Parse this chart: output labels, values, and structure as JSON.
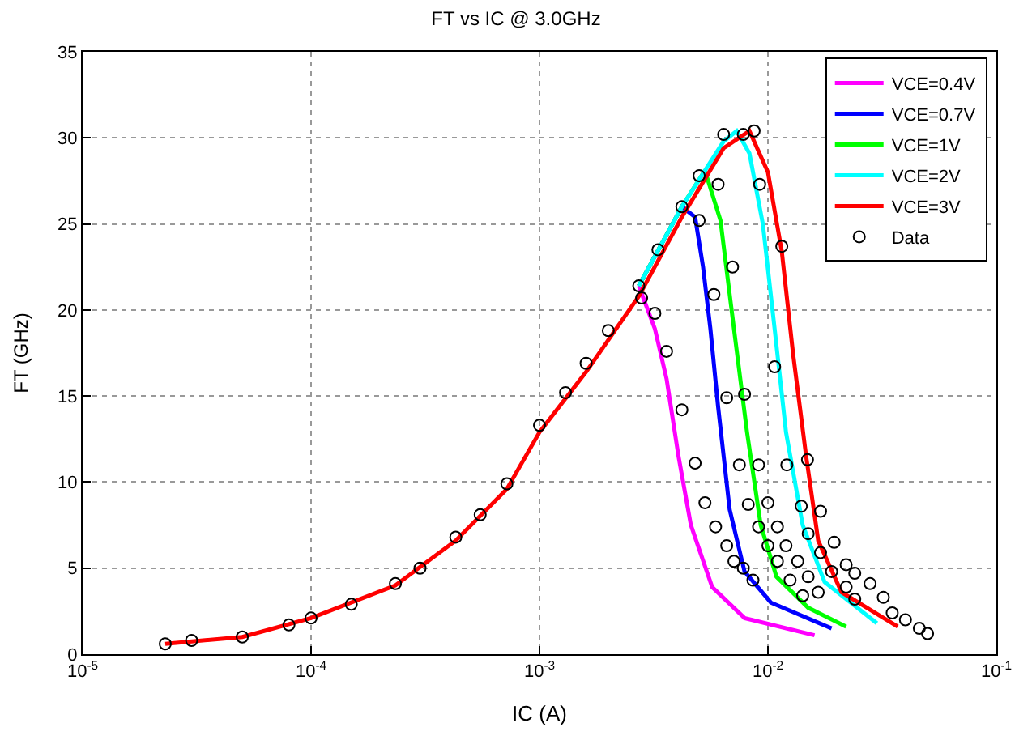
{
  "chart_data": {
    "type": "line",
    "title": "FT vs IC @ 3.0GHz",
    "xlabel": "IC (A)",
    "ylabel": "FT (GHz)",
    "log": "x",
    "grid": true,
    "legend": "top right",
    "xlim": [
      1e-05,
      0.1
    ],
    "xticks": [
      {
        "value": 1e-05,
        "label": "10$^{-5}$"
      },
      {
        "value": 0.0001,
        "label": "10$^{-4}$"
      },
      {
        "value": 0.001,
        "label": "10$^{-3}$"
      },
      {
        "value": 0.01,
        "label": "10$^{-2}$"
      },
      {
        "value": 0.1,
        "label": "10$^{-1}$"
      }
    ],
    "ylim": [
      0,
      35
    ],
    "yticks": [
      0,
      5,
      10,
      15,
      20,
      25,
      30,
      35
    ],
    "series": [
      {
        "name": "VCE=0.4V",
        "color": "#ff00ff",
        "marker": "none",
        "x": [
          0.00272,
          0.0032,
          0.0036,
          0.00406,
          0.0046,
          0.0057,
          0.0079,
          0.016
        ],
        "values": [
          21.4,
          18.9,
          16,
          11.5,
          7.5,
          3.9,
          2.1,
          1.1
        ]
      },
      {
        "name": "VCE=0.7V",
        "color": "#0000ff",
        "marker": "none",
        "x": [
          0.00272,
          0.0042,
          0.0048,
          0.0052,
          0.0056,
          0.00605,
          0.0068,
          0.0079,
          0.0103,
          0.019
        ],
        "values": [
          21.4,
          26,
          25.4,
          22.5,
          18.9,
          14.4,
          8.4,
          4.8,
          3.0,
          1.5
        ]
      },
      {
        "name": "VCE=1V",
        "color": "#00ff00",
        "marker": "none",
        "x": [
          0.00272,
          0.0042,
          0.0053,
          0.0062,
          0.0071,
          0.0081,
          0.0093,
          0.0109,
          0.015,
          0.022
        ],
        "values": [
          21.4,
          26,
          28.1,
          25.2,
          18.9,
          12.9,
          7.5,
          4.5,
          2.7,
          1.6
        ]
      },
      {
        "name": "VCE=2V",
        "color": "#00ffff",
        "marker": "none",
        "x": [
          0.00272,
          0.0042,
          0.0064,
          0.0073,
          0.0083,
          0.0095,
          0.0107,
          0.012,
          0.0142,
          0.0177,
          0.03
        ],
        "values": [
          21.4,
          26,
          29.8,
          30.4,
          29.1,
          25,
          18.9,
          12.9,
          7.5,
          4.2,
          1.8
        ]
      },
      {
        "name": "VCE=3V",
        "color": "#ff0000",
        "marker": "none",
        "x": [
          2.3e-05,
          5e-05,
          0.0001,
          0.000234,
          0.00043,
          0.00072,
          0.001,
          0.0016,
          0.00272,
          0.0042,
          0.0064,
          0.0083,
          0.01,
          0.0115,
          0.0129,
          0.0147,
          0.0166,
          0.021,
          0.037
        ],
        "values": [
          0.6,
          1.0,
          2.1,
          4.0,
          6.6,
          9.6,
          12.9,
          16.4,
          20.8,
          25.4,
          29.4,
          30.4,
          28,
          23.4,
          17.4,
          11.5,
          6.6,
          3.6,
          1.6
        ]
      },
      {
        "name": "Data",
        "color": "#000000",
        "type": "scatter",
        "marker": "circle",
        "x": [
          2.3e-05,
          3e-05,
          5e-05,
          8e-05,
          0.0001,
          0.00015,
          0.000234,
          0.0003,
          0.00043,
          0.00055,
          0.00072,
          0.001,
          0.0013,
          0.0016,
          0.002,
          0.00272,
          0.0033,
          0.0042,
          0.005,
          0.0064,
          0.0028,
          0.0032,
          0.0036,
          0.0042,
          0.0048,
          0.0053,
          0.0059,
          0.0066,
          0.0071,
          0.0078,
          0.0086,
          0.005,
          0.0058,
          0.0066,
          0.0075,
          0.0082,
          0.0091,
          0.01,
          0.011,
          0.0125,
          0.0142,
          0.00605,
          0.007,
          0.0079,
          0.0091,
          0.01,
          0.011,
          0.012,
          0.0135,
          0.015,
          0.0166,
          0.0078,
          0.0092,
          0.0107,
          0.0121,
          0.014,
          0.015,
          0.017,
          0.019,
          0.022,
          0.024,
          0.0087,
          0.0115,
          0.0149,
          0.017,
          0.0195,
          0.022,
          0.024,
          0.028,
          0.032,
          0.035,
          0.04,
          0.046,
          0.05
        ],
        "values": [
          0.6,
          0.8,
          1.0,
          1.7,
          2.1,
          2.9,
          4.1,
          5.0,
          6.8,
          8.1,
          9.9,
          13.3,
          15.2,
          16.9,
          18.8,
          21.4,
          23.5,
          26,
          27.8,
          30.2,
          20.7,
          19.8,
          17.6,
          14.2,
          11.1,
          8.8,
          7.4,
          6.3,
          5.4,
          5.0,
          4.3,
          25.2,
          20.9,
          14.9,
          11,
          8.7,
          7.4,
          6.3,
          5.4,
          4.3,
          3.4,
          27.3,
          22.5,
          15.1,
          11,
          8.8,
          7.4,
          6.3,
          5.4,
          4.5,
          3.6,
          30.2,
          27.3,
          16.7,
          11,
          8.6,
          7.0,
          5.9,
          4.8,
          3.9,
          3.2,
          30.4,
          23.7,
          11.3,
          8.3,
          6.5,
          5.2,
          4.7,
          4.1,
          3.3,
          2.4,
          2.0,
          1.5,
          1.2
        ]
      }
    ]
  }
}
